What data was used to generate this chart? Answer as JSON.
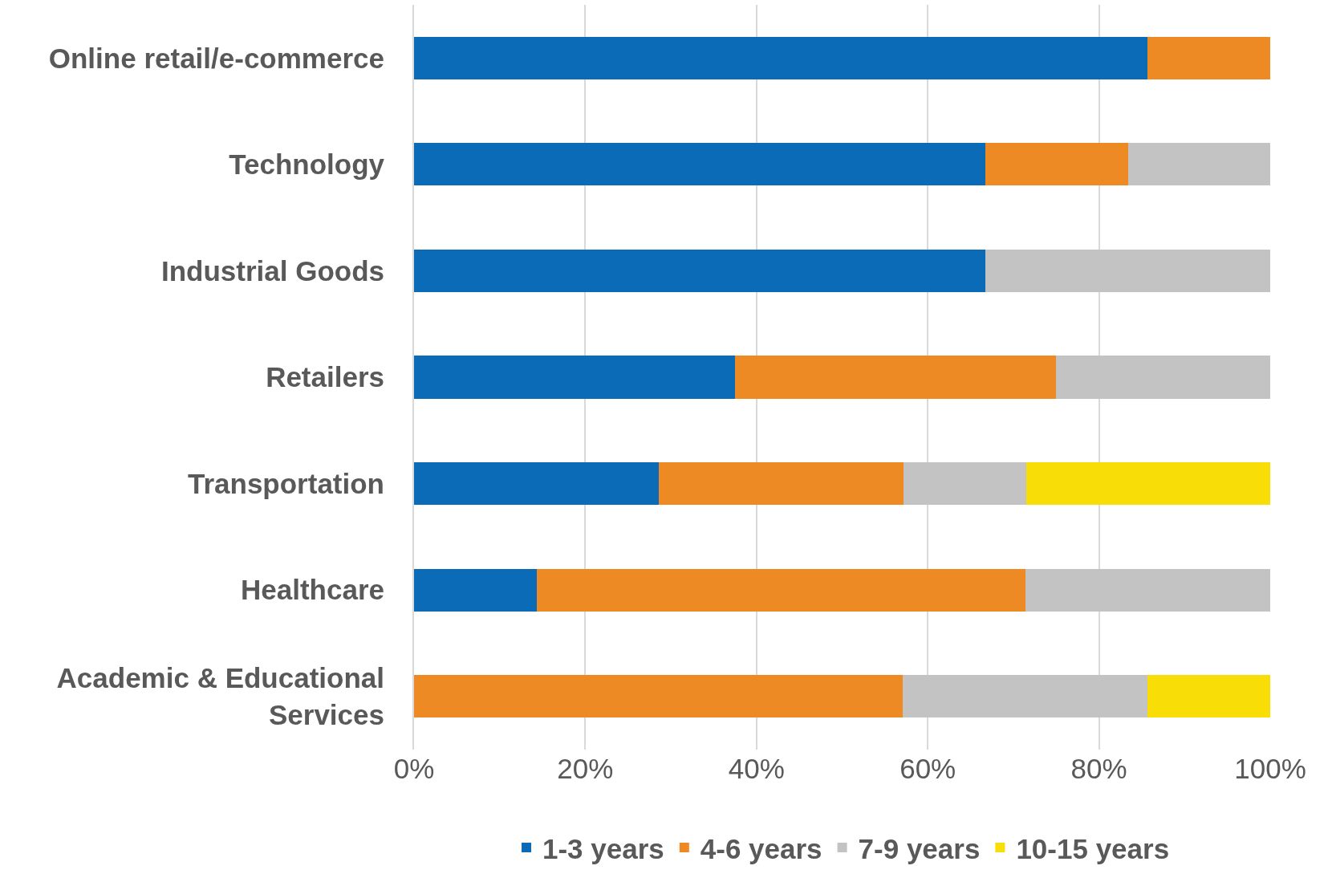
{
  "chart_data": {
    "type": "bar",
    "orientation": "horizontal",
    "stacked": true,
    "categories": [
      "Online retail/e-commerce",
      "Technology",
      "Industrial Goods",
      "Retailers",
      "Transportation",
      "Healthcare",
      "Academic & Educational Services"
    ],
    "series": [
      {
        "name": "1-3 years",
        "color": "#0c6bb6",
        "values": [
          85.7,
          66.7,
          66.7,
          37.5,
          28.6,
          14.3,
          0
        ]
      },
      {
        "name": "4-6 years",
        "color": "#ee8a24",
        "values": [
          14.3,
          16.7,
          0,
          37.5,
          28.6,
          57.1,
          57.1
        ]
      },
      {
        "name": "7-9 years",
        "color": "#c3c3c3",
        "values": [
          0,
          16.6,
          33.3,
          25,
          14.3,
          28.6,
          28.6
        ]
      },
      {
        "name": "10-15 years",
        "color": "#f9dd07",
        "values": [
          0,
          0,
          0,
          0,
          28.5,
          0,
          14.3
        ]
      }
    ],
    "xlim": [
      0,
      100
    ],
    "xticks": [
      {
        "value": 0,
        "label": "0%"
      },
      {
        "value": 20,
        "label": "20%"
      },
      {
        "value": 40,
        "label": "40%"
      },
      {
        "value": 60,
        "label": "60%"
      },
      {
        "value": 80,
        "label": "80%"
      },
      {
        "value": 100,
        "label": "100%"
      }
    ],
    "grid": "x",
    "legend": "bottom"
  }
}
